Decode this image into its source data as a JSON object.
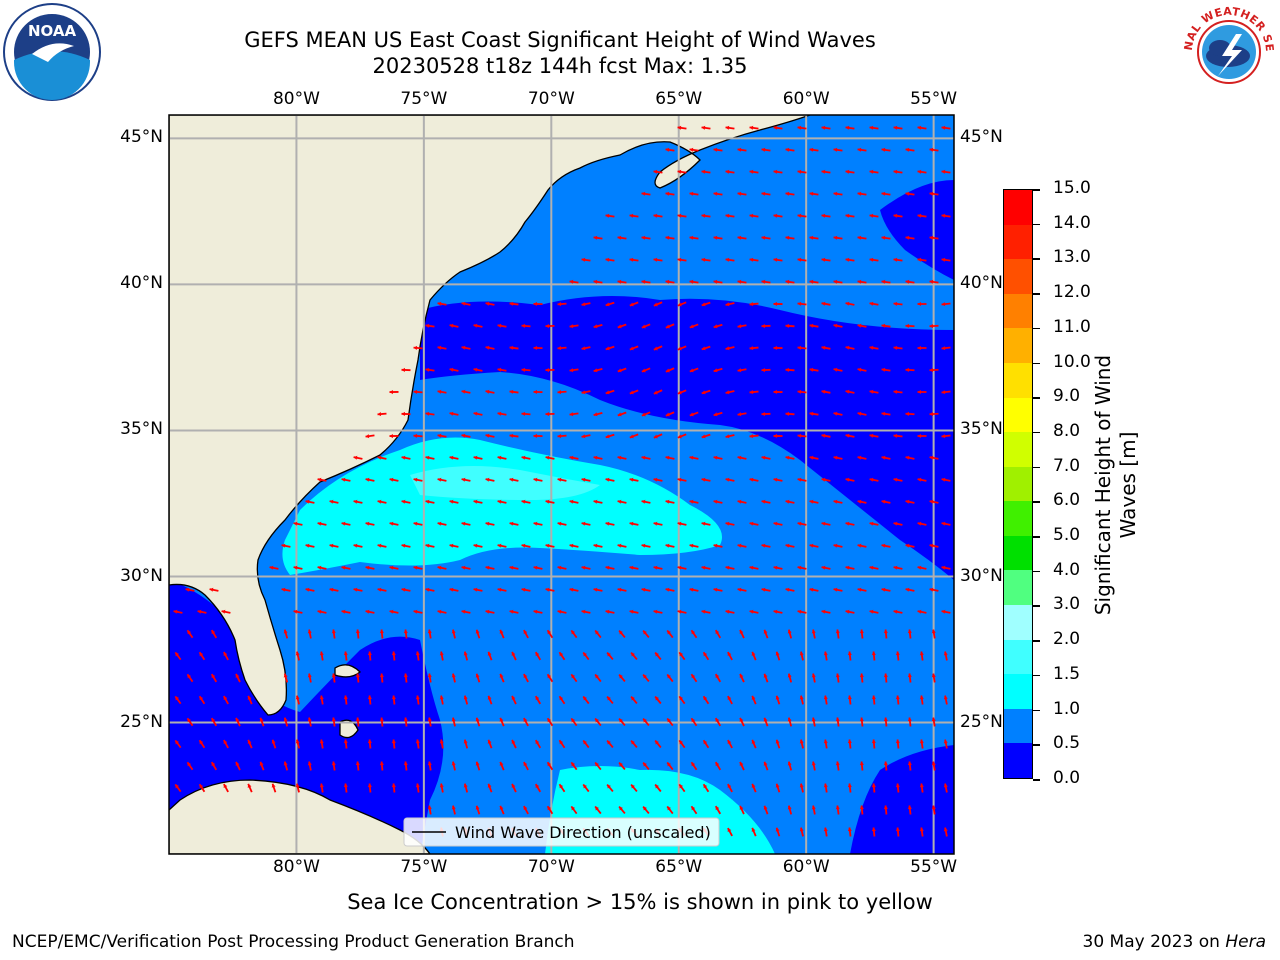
{
  "title": {
    "line1": "GEFS MEAN US East Coast Significant Height of Wind Waves",
    "line2": "20230528 t18z 144h fcst   Max: 1.35"
  },
  "logos": {
    "left": {
      "name": "noaa-logo",
      "text": "NOAA"
    },
    "right": {
      "name": "national-weather-service-logo",
      "text": "NATIONAL WEATHER SERVICE"
    }
  },
  "map": {
    "lon_labels": [
      "80°W",
      "75°W",
      "70°W",
      "65°W",
      "60°W",
      "55°W"
    ],
    "lat_labels": [
      "45°N",
      "40°N",
      "35°N",
      "30°N",
      "25°N"
    ],
    "lon_values": [
      -80,
      -75,
      -70,
      -65,
      -60,
      -55
    ],
    "lat_values": [
      45,
      40,
      35,
      30,
      25
    ],
    "extent": {
      "lon": [
        -85,
        -54.2
      ],
      "lat": [
        20.5,
        45.8
      ]
    },
    "land_color": "#efedda",
    "grid_color": "#b0b0b0",
    "vector_color": "#ff0000",
    "legend": "Wind Wave Direction (unscaled)"
  },
  "colorbar": {
    "label": "Significant Height of Wind Waves [m]",
    "ticks": [
      "0.0",
      "0.5",
      "1.0",
      "1.5",
      "2.0",
      "3.0",
      "4.0",
      "5.0",
      "6.0",
      "7.0",
      "8.0",
      "9.0",
      "10.0",
      "11.0",
      "12.0",
      "13.0",
      "14.0",
      "15.0"
    ],
    "colors": [
      "#0000ff",
      "#0080ff",
      "#00ffff",
      "#40ffff",
      "#a0ffff",
      "#50ff80",
      "#00e000",
      "#40f000",
      "#a0f000",
      "#d0ff00",
      "#ffff00",
      "#ffe000",
      "#ffb000",
      "#ff8000",
      "#ff5000",
      "#ff2000",
      "#ff0000"
    ]
  },
  "note": "Sea Ice Concentration > 15% is shown in pink to yellow",
  "footer": {
    "credit": "NCEP/EMC/Verification Post Processing Product Generation Branch",
    "date": "30 May 2023 on",
    "machine": "Hera"
  }
}
